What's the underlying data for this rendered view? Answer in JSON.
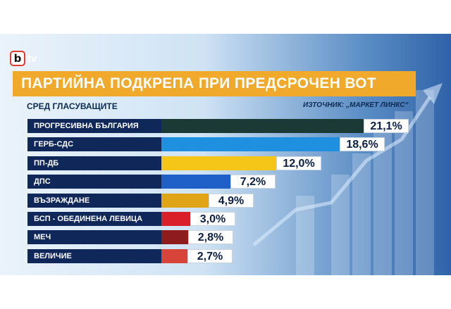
{
  "header": {
    "logo_letter": "b",
    "logo_text": "tv",
    "title": "ПАРТИЙНА ПОДКРЕПА ПРИ ПРЕДСРОЧЕН ВОТ",
    "subtitle": "СРЕД ГЛАСУВАЩИТЕ",
    "source": "ИЗТОЧНИК: „МАРКЕТ ЛИНКС“"
  },
  "chart_data": {
    "type": "bar",
    "orientation": "horizontal",
    "title": "ПАРТИЙНА ПОДКРЕПА ПРИ ПРЕДСРОЧЕН ВОТ",
    "subtitle": "СРЕД ГЛАСУВАЩИТЕ",
    "categories": [
      "ПРОГРЕСИВНА БЪЛГАРИЯ",
      "ГЕРБ-СДС",
      "ПП-ДБ",
      "ДПС",
      "ВЪЗРАЖДАНЕ",
      "БСП - ОБЕДИНЕНА ЛЕВИЦА",
      "МЕЧ",
      "ВЕЛИЧИЕ"
    ],
    "values": [
      21.1,
      18.6,
      12.0,
      7.2,
      4.9,
      3.0,
      2.8,
      2.7
    ],
    "value_labels": [
      "21,1%",
      "18,6%",
      "12,0%",
      "7,2%",
      "4,9%",
      "3,0%",
      "2,8%",
      "2,7%"
    ],
    "colors": [
      "#1b3a36",
      "#1f8fe0",
      "#f5c518",
      "#1f5fc8",
      "#e0a516",
      "#d81f2a",
      "#8e1c1c",
      "#d9443a"
    ],
    "grid": false,
    "legend": "none"
  },
  "colors": {
    "label_bg": "#10275a",
    "title_bg": "#f0a92a"
  }
}
